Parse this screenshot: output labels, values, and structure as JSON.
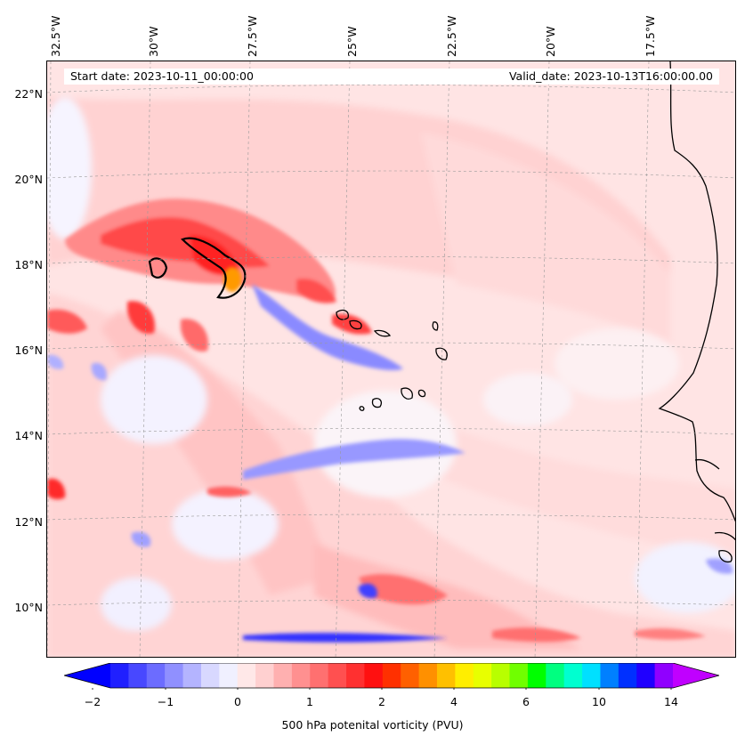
{
  "header": {
    "start_date": "Start date: 2023-10-11_00:00:00",
    "valid_date": "Valid_date: 2023-10-13T16:00:00.00"
  },
  "axes": {
    "lon_labels": [
      "32.5°W",
      "30°W",
      "27.5°W",
      "25°W",
      "22.5°W",
      "20°W",
      "17.5°W"
    ],
    "lat_labels": [
      "22°N",
      "20°N",
      "18°N",
      "16°N",
      "14°N",
      "12°N",
      "10°N"
    ]
  },
  "colorbar": {
    "title": "500 hPa potenital vorticity (PVU)",
    "tick_labels": [
      "−2",
      "−1",
      "0",
      "1",
      "2",
      "4",
      "6",
      "10",
      "14"
    ],
    "colors": [
      "#0000ff",
      "#2020ff",
      "#4848ff",
      "#6c6cff",
      "#9090ff",
      "#b4b4ff",
      "#d8d8ff",
      "#f0f0ff",
      "#ffe8e8",
      "#ffd0d0",
      "#ffb0b0",
      "#ff9090",
      "#ff7070",
      "#ff5050",
      "#ff3030",
      "#ff1010",
      "#ff3000",
      "#ff6000",
      "#ff9000",
      "#ffc000",
      "#ffee00",
      "#e8ff00",
      "#b8ff00",
      "#70ff00",
      "#00ff00",
      "#00ff80",
      "#00ffd0",
      "#00e0ff",
      "#0080ff",
      "#0030ff",
      "#2000ff",
      "#9000ff",
      "#c000ff"
    ]
  },
  "legend_colors": {
    "land_outline": "#000000",
    "background_pv": "#ffe4e4"
  }
}
